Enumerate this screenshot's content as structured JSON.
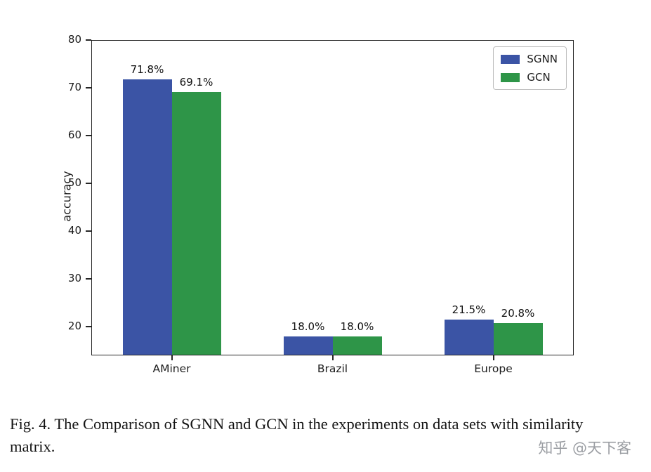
{
  "chart_data": {
    "type": "bar",
    "categories": [
      "AMiner",
      "Brazil",
      "Europe"
    ],
    "series": [
      {
        "name": "SGNN",
        "color": "#3b54a5",
        "values": [
          71.8,
          18.0,
          21.5
        ]
      },
      {
        "name": "GCN",
        "color": "#2e9548",
        "values": [
          69.1,
          18.0,
          20.8
        ]
      }
    ],
    "value_labels": [
      [
        "71.8%",
        "69.1%"
      ],
      [
        "18.0%",
        "18.0%"
      ],
      [
        "21.5%",
        "20.8%"
      ]
    ],
    "title": "",
    "xlabel": "",
    "ylabel": "accuracy",
    "yticks": [
      20,
      30,
      40,
      50,
      60,
      70,
      80
    ],
    "ylim": [
      14,
      80
    ],
    "legend": [
      "SGNN",
      "GCN"
    ],
    "legend_position": "top-right",
    "grid": false
  },
  "caption": {
    "text": "Fig. 4.  The Comparison of SGNN and GCN in the experiments on data sets with similarity matrix."
  },
  "watermark": "知乎 @天下客"
}
